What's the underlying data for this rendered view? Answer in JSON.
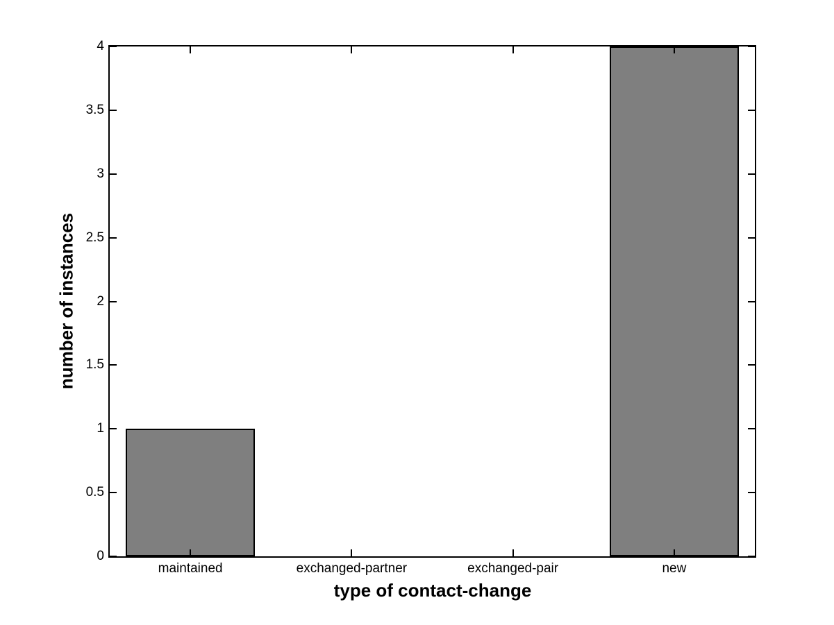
{
  "chart_data": {
    "type": "bar",
    "title": "",
    "categories": [
      "maintained",
      "exchanged-partner",
      "exchanged-pair",
      "new"
    ],
    "values": [
      1,
      0,
      0,
      4
    ],
    "xlabel": "type of contact-change",
    "ylabel": "number of instances",
    "ylim": [
      0,
      4
    ],
    "yticks": [
      0,
      0.5,
      1,
      1.5,
      2,
      2.5,
      3,
      3.5,
      4
    ],
    "ytick_labels": [
      "0",
      "0.5",
      "1",
      "1.5",
      "2",
      "2.5",
      "3",
      "3.5",
      "4"
    ],
    "bar_width_fraction": 0.8,
    "grid": false,
    "legend": null,
    "colors": {
      "bar_fill": "#7f7f7f",
      "bar_edge": "#000000",
      "axis": "#000000",
      "text": "#000000",
      "background": "#ffffff"
    }
  }
}
